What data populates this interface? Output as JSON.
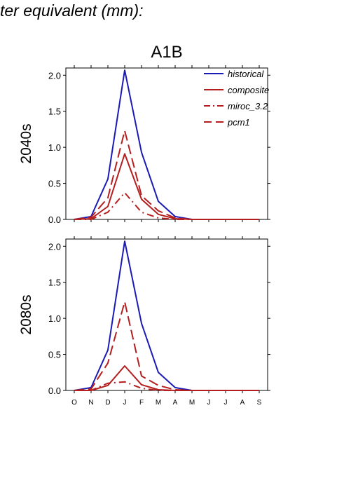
{
  "header": {
    "title_fragment": "ter equivalent (mm):"
  },
  "colors": {
    "historical": "#1a1ab4",
    "scenario": "#b41e1e",
    "axis": "#000000"
  },
  "chart_data": {
    "type": "line",
    "title": "A1B",
    "categories": [
      "O",
      "N",
      "D",
      "J",
      "F",
      "M",
      "A",
      "M",
      "J",
      "J",
      "A",
      "S"
    ],
    "ylim": [
      0,
      2.1
    ],
    "yticks": [
      "0.0",
      "0.5",
      "1.0",
      "1.5",
      "2.0"
    ],
    "ytick_values": [
      0,
      0.5,
      1.0,
      1.5,
      2.0
    ],
    "legend": {
      "placement": "top-right",
      "entries": [
        "historical",
        "composite",
        "miroc_3.2",
        "pcm1"
      ]
    },
    "panels": [
      {
        "label": "2040s",
        "series": [
          {
            "name": "historical",
            "style": "solid",
            "color": "#1a1ab4",
            "values": [
              0.0,
              0.04,
              0.56,
              2.07,
              0.93,
              0.25,
              0.04,
              0.0,
              0.0,
              0.0,
              0.0,
              0.0
            ]
          },
          {
            "name": "composite",
            "style": "solid",
            "color": "#b41e1e",
            "values": [
              0.0,
              0.01,
              0.18,
              0.91,
              0.28,
              0.07,
              0.01,
              0.0,
              0.0,
              0.0,
              0.0,
              0.0
            ]
          },
          {
            "name": "miroc_3.2",
            "style": "dashdot",
            "color": "#b41e1e",
            "values": [
              0.0,
              0.0,
              0.1,
              0.37,
              0.1,
              0.02,
              0.0,
              0.0,
              0.0,
              0.0,
              0.0,
              0.0
            ]
          },
          {
            "name": "pcm1",
            "style": "dash",
            "color": "#b41e1e",
            "values": [
              0.0,
              0.03,
              0.3,
              1.23,
              0.33,
              0.12,
              0.02,
              0.0,
              0.0,
              0.0,
              0.0,
              0.0
            ]
          }
        ]
      },
      {
        "label": "2080s",
        "series": [
          {
            "name": "historical",
            "style": "solid",
            "color": "#1a1ab4",
            "values": [
              0.0,
              0.04,
              0.56,
              2.07,
              0.93,
              0.25,
              0.04,
              0.0,
              0.0,
              0.0,
              0.0,
              0.0
            ]
          },
          {
            "name": "composite",
            "style": "solid",
            "color": "#b41e1e",
            "values": [
              0.0,
              0.0,
              0.07,
              0.34,
              0.08,
              0.01,
              0.0,
              0.0,
              0.0,
              0.0,
              0.0,
              0.0
            ]
          },
          {
            "name": "miroc_3.2",
            "style": "dashdot",
            "color": "#b41e1e",
            "values": [
              0.0,
              0.0,
              0.1,
              0.12,
              0.03,
              0.0,
              0.0,
              0.0,
              0.0,
              0.0,
              0.0,
              0.0
            ]
          },
          {
            "name": "pcm1",
            "style": "dash",
            "color": "#b41e1e",
            "values": [
              0.0,
              0.02,
              0.38,
              1.23,
              0.2,
              0.07,
              0.01,
              0.0,
              0.0,
              0.0,
              0.0,
              0.0
            ]
          }
        ]
      }
    ]
  }
}
